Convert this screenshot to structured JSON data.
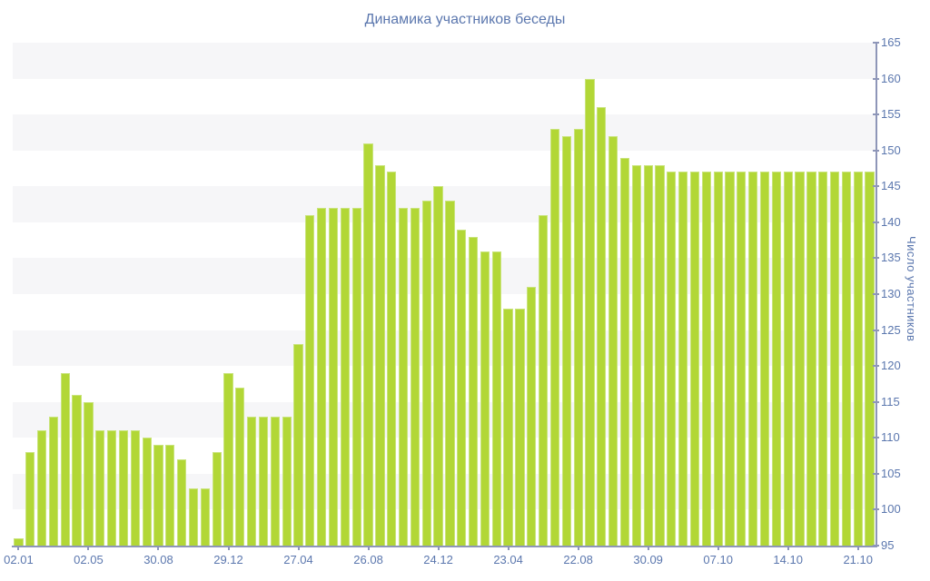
{
  "title": "Динамика участников беседы",
  "y_axis": {
    "label": "Число участников",
    "min": 95,
    "max": 165,
    "step": 5
  },
  "x_axis": {
    "tick_labels": [
      "02.01",
      "02.05",
      "30.08",
      "29.12",
      "27.04",
      "26.08",
      "24.12",
      "23.04",
      "22.08",
      "30.09",
      "07.10",
      "14.10",
      "21.10"
    ],
    "tick_every": 6
  },
  "colors": {
    "bar_fill": "#b2d736",
    "bar_edge": "#c9e47c",
    "band_gray": "#f6f6f8",
    "axis": "#8e96b8",
    "label_text": "#5b77ae"
  },
  "chart_data": {
    "type": "bar",
    "title": "Динамика участников беседы",
    "xlabel": "",
    "ylabel": "Число участников",
    "ylim": [
      95,
      165
    ],
    "grid": "horizontal-bands",
    "legend": "none",
    "tick_labels": [
      "02.01",
      "02.05",
      "30.08",
      "29.12",
      "27.04",
      "26.08",
      "24.12",
      "23.04",
      "22.08",
      "30.09",
      "07.10",
      "14.10",
      "21.10"
    ],
    "bars_per_tick": 6,
    "values": [
      96,
      108,
      111,
      113,
      119,
      116,
      115,
      111,
      111,
      111,
      111,
      110,
      109,
      109,
      107,
      103,
      103,
      108,
      119,
      117,
      113,
      113,
      113,
      113,
      123,
      141,
      142,
      142,
      142,
      142,
      151,
      148,
      147,
      142,
      142,
      143,
      145,
      143,
      139,
      138,
      136,
      136,
      128,
      128,
      131,
      141,
      153,
      152,
      153,
      160,
      156,
      152,
      149,
      148,
      148,
      148,
      147,
      147,
      147,
      147,
      147,
      147,
      147,
      147,
      147,
      147,
      147,
      147,
      147,
      147,
      147,
      147,
      147,
      147
    ]
  }
}
